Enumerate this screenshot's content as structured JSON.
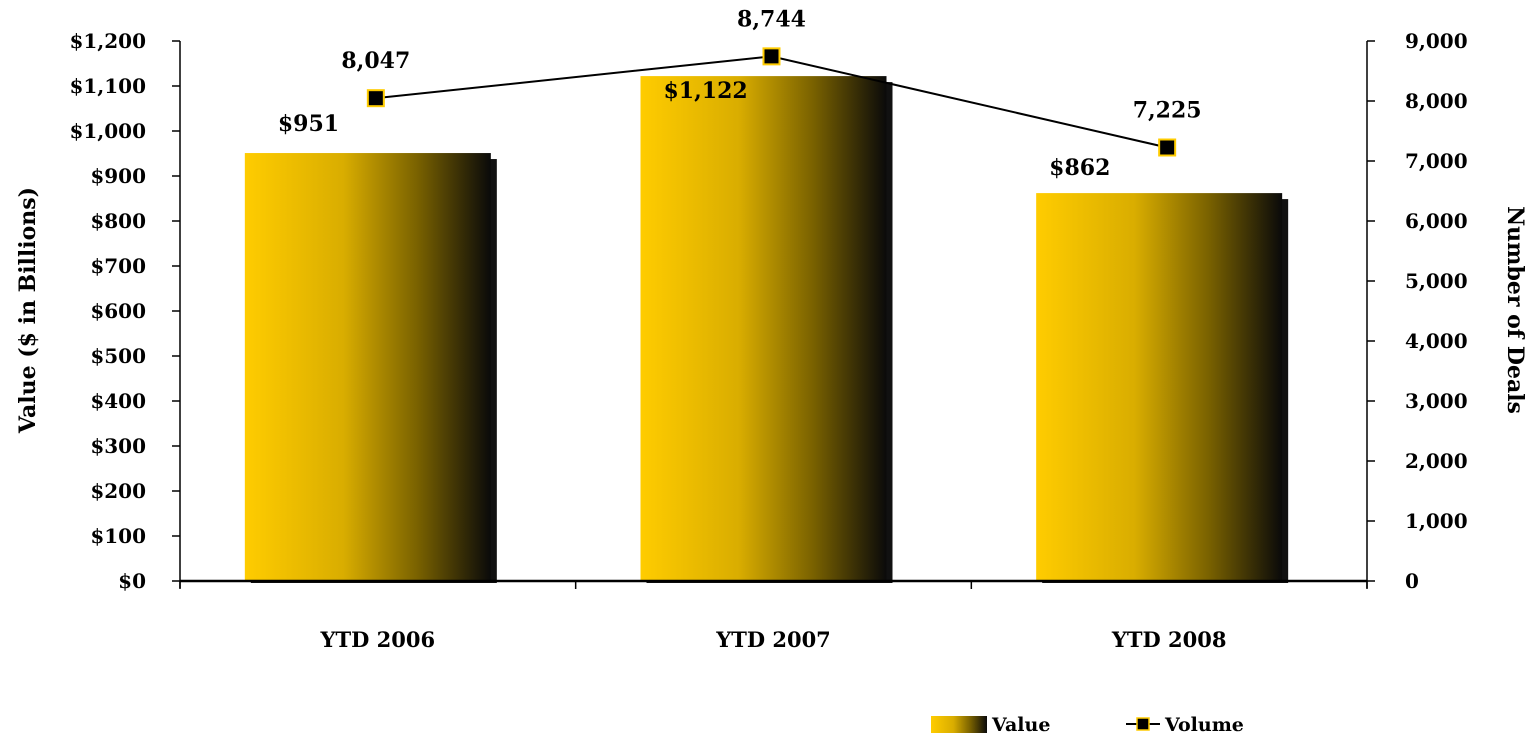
{
  "chart_data": {
    "type": "bar",
    "categories": [
      "YTD 2006",
      "YTD 2007",
      "YTD 2008"
    ],
    "series": [
      {
        "name": "Value",
        "type": "bar",
        "axis": "left",
        "values": [
          951,
          1122,
          862
        ],
        "labels": [
          "$951",
          "$1,122",
          "$862"
        ]
      },
      {
        "name": "Volume",
        "type": "line",
        "axis": "right",
        "values": [
          8047,
          8744,
          7225
        ],
        "labels": [
          "8,047",
          "8,744",
          "7,225"
        ]
      }
    ],
    "ylabel": "Value ($ in Billions)",
    "y2label": "Number of Deals",
    "ylim": [
      0,
      1200
    ],
    "y2lim": [
      0,
      9000
    ],
    "yticks": [
      "$0",
      "$100",
      "$200",
      "$300",
      "$400",
      "$500",
      "$600",
      "$700",
      "$800",
      "$900",
      "$1,000",
      "$1,100",
      "$1,200"
    ],
    "y2ticks": [
      "0",
      "1,000",
      "2,000",
      "3,000",
      "4,000",
      "5,000",
      "6,000",
      "7,000",
      "8,000",
      "9,000"
    ],
    "legend_position": "bottom-right",
    "grid": false,
    "colors": {
      "bar_light": "#FFCC00",
      "bar_dark": "#0a0a0a",
      "marker_fill": "#000000",
      "marker_stroke": "#FFCC00",
      "line": "#000000"
    }
  }
}
